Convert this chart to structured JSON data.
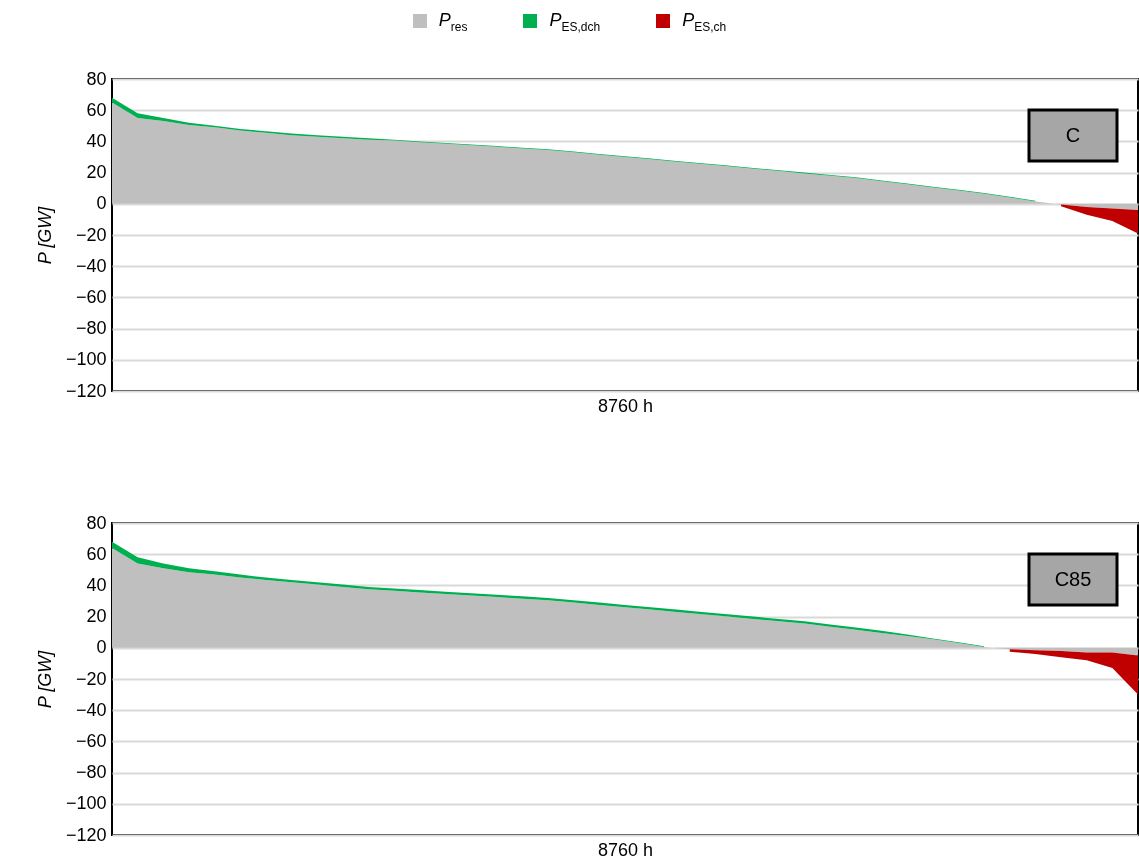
{
  "chart_data": [
    {
      "type": "area",
      "stacked": true,
      "legend": "top",
      "grid": "y",
      "tick_labels": "y",
      "xlabel": "8760 h",
      "ylabel": "P [GW]",
      "annotations": [
        "C"
      ],
      "categories": [
        null,
        null,
        null,
        null,
        null,
        null,
        null,
        null,
        null,
        null,
        null,
        null,
        null,
        null,
        null,
        null,
        null,
        null,
        null,
        null,
        null,
        null,
        null,
        null,
        null,
        null,
        null,
        null,
        null,
        null,
        null,
        null,
        null,
        null,
        null,
        null,
        null,
        null,
        null,
        null,
        null
      ],
      "ylim": [
        -120,
        80
      ],
      "yticks": [
        80,
        60,
        40,
        20,
        0,
        -20,
        -40,
        -60,
        -80,
        -100,
        -120
      ],
      "series": [
        {
          "name": "P$_{res}$",
          "color": "#bfbfbf",
          "values": [
            65,
            55,
            53,
            50.5,
            49,
            47,
            45.5,
            44,
            43,
            42,
            41,
            40.5,
            39.5,
            38.5,
            37.5,
            36.5,
            35.5,
            34.5,
            33,
            31.5,
            30,
            28.5,
            27,
            25.5,
            24,
            22.5,
            21,
            19.5,
            18,
            16.5,
            14.5,
            12.5,
            10.5,
            8.5,
            6.5,
            4,
            1.5,
            -0.5,
            -2,
            -3,
            -4
          ]
        },
        {
          "name": "P$_{ES,dch}$",
          "color": "#00b050",
          "values": [
            3,
            3,
            2,
            1.5,
            1,
            1,
            1,
            1,
            1,
            1,
            1,
            0.5,
            0.5,
            0.5,
            0.5,
            0.5,
            0.5,
            0.5,
            0.5,
            0.5,
            0.5,
            0.5,
            0.5,
            0.5,
            0.5,
            0.5,
            0.5,
            0.5,
            0.5,
            0.5,
            0.5,
            0.5,
            0.5,
            0.5,
            0.5,
            0.5,
            0.5,
            null,
            null,
            null,
            null
          ]
        },
        {
          "name": "P$_{ES,ch}$",
          "color": "#c00000",
          "values": [
            null,
            null,
            null,
            null,
            null,
            null,
            null,
            null,
            null,
            null,
            null,
            null,
            null,
            null,
            null,
            null,
            null,
            null,
            null,
            null,
            null,
            null,
            null,
            null,
            null,
            null,
            null,
            null,
            null,
            null,
            null,
            null,
            null,
            null,
            null,
            null,
            null,
            -1,
            -5,
            -8,
            -15
          ]
        }
      ]
    },
    {
      "type": "area",
      "stacked": true,
      "grid": "y",
      "tick_labels": "y",
      "xlabel": "8760 h",
      "ylabel": "P [GW]",
      "annotations": [
        "C85"
      ],
      "categories": [
        null,
        null,
        null,
        null,
        null,
        null,
        null,
        null,
        null,
        null,
        null,
        null,
        null,
        null,
        null,
        null,
        null,
        null,
        null,
        null,
        null,
        null,
        null,
        null,
        null,
        null,
        null,
        null,
        null,
        null,
        null,
        null,
        null,
        null,
        null,
        null,
        null,
        null,
        null,
        null,
        null
      ],
      "ylim": [
        -120,
        80
      ],
      "yticks": [
        80,
        60,
        40,
        20,
        0,
        -20,
        -40,
        -60,
        -80,
        -100,
        -120
      ],
      "series": [
        {
          "color": "#bfbfbf",
          "values": [
            64,
            54,
            51,
            48.5,
            47,
            45,
            43.5,
            42,
            40.5,
            39,
            37.5,
            36.5,
            35.5,
            34.5,
            33.5,
            32.5,
            31.5,
            30.5,
            29,
            27.5,
            26,
            24.5,
            23,
            21.5,
            20,
            18.5,
            17,
            15.5,
            13.5,
            11.5,
            9.5,
            7.5,
            5.5,
            3,
            0.5,
            -1,
            -1.5,
            -2,
            -3,
            -3,
            -5
          ]
        },
        {
          "color": "#00b050",
          "values": [
            4,
            4,
            3,
            2.5,
            2,
            2,
            1.5,
            1.5,
            1.5,
            1.5,
            1.5,
            1.5,
            1.5,
            1.5,
            1.5,
            1.5,
            1.5,
            1.5,
            1.5,
            1.5,
            1.5,
            1.5,
            1.5,
            1.5,
            1.5,
            1.5,
            1.5,
            1.5,
            1.5,
            1.5,
            1.5,
            1,
            0.5,
            0.5,
            0.5,
            null,
            null,
            null,
            null,
            null,
            null
          ]
        },
        {
          "color": "#c00000",
          "values": [
            null,
            null,
            null,
            null,
            null,
            null,
            null,
            null,
            null,
            null,
            null,
            null,
            null,
            null,
            null,
            null,
            null,
            null,
            null,
            null,
            null,
            null,
            null,
            null,
            null,
            null,
            null,
            null,
            null,
            null,
            null,
            null,
            null,
            null,
            null,
            -1.5,
            -2.5,
            -4,
            -5,
            -10,
            -25
          ]
        }
      ]
    }
  ]
}
